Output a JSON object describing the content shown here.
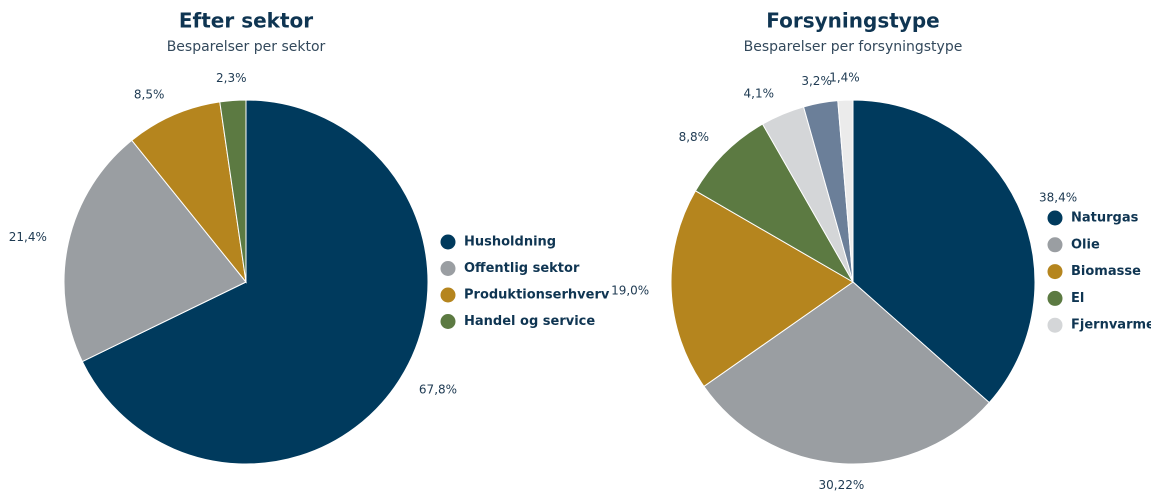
{
  "chart_data": [
    {
      "type": "pie",
      "title": "Efter sektor",
      "subtitle": "Besparelser per sektor",
      "categories": [
        "Husholdning",
        "Offentlig sektor",
        "Produktionserhverv",
        "Handel og service"
      ],
      "values": [
        67.8,
        21.4,
        8.5,
        2.3
      ],
      "value_labels": [
        "67,8%",
        "21,4%",
        "8,5%",
        "2,3%"
      ],
      "colors": [
        "#003a5d",
        "#9a9ea2",
        "#b5851e",
        "#5c7a42"
      ],
      "legend": "right"
    },
    {
      "type": "pie",
      "title": "Forsyningstype",
      "subtitle": "Besparelser per forsyningstype",
      "categories": [
        "Naturgas",
        "Olie",
        "Biomasse",
        "El",
        "Fjernvarme",
        null,
        null
      ],
      "values": [
        38.4,
        30.22,
        19.0,
        8.8,
        4.1,
        3.2,
        1.4
      ],
      "value_labels": [
        "38,4%",
        "30,22%",
        "19,0%",
        "8,8%",
        "4,1%",
        "3,2%",
        "1,4%"
      ],
      "colors": [
        "#003a5d",
        "#9a9ea2",
        "#b5851e",
        "#5c7a42",
        "#d4d6d8",
        "#6b7f99",
        "#ebebeb"
      ],
      "legend": "right"
    }
  ]
}
